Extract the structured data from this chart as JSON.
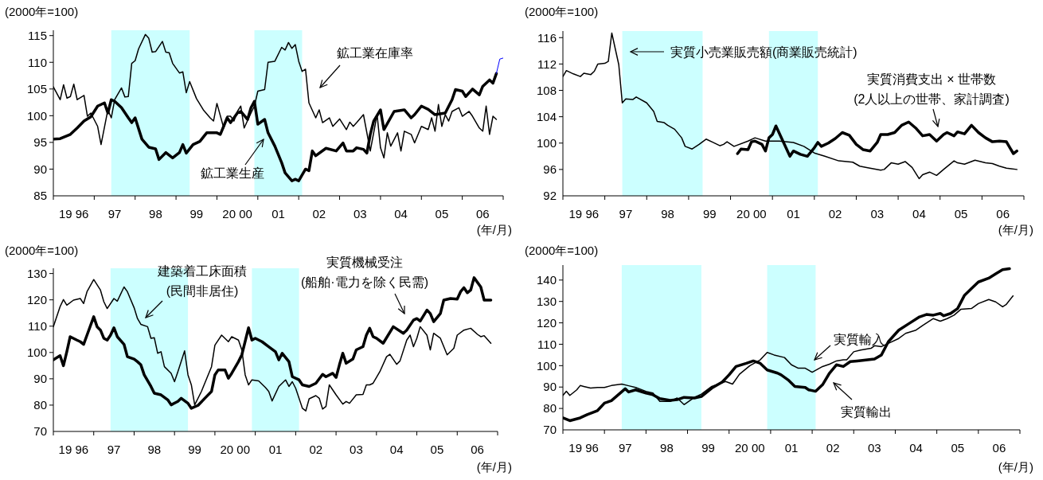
{
  "chart_data": [
    {
      "type": "line",
      "ylabel": "(2000年=100)",
      "xlabel": "(年/月)",
      "xlim": [
        "1996",
        "2007"
      ],
      "ylim": [
        85,
        116
      ],
      "yticks": [
        85,
        90,
        95,
        100,
        105,
        110,
        115
      ],
      "xticks": [
        {
          "value": "1996",
          "label": null
        },
        {
          "value": "1996-07",
          "label": "19 96"
        },
        {
          "value": "1997",
          "label": null
        },
        {
          "value": "1997-07",
          "label": "97"
        },
        {
          "value": "1998",
          "label": null
        },
        {
          "value": "1998-07",
          "label": "98"
        },
        {
          "value": "1999",
          "label": null
        },
        {
          "value": "1999-07",
          "label": "99"
        },
        {
          "value": "2000",
          "label": null
        },
        {
          "value": "2000-07",
          "label": "20 00"
        },
        {
          "value": "2001",
          "label": null
        },
        {
          "value": "2001-07",
          "label": "01"
        },
        {
          "value": "2002",
          "label": null
        },
        {
          "value": "2002-07",
          "label": "02"
        },
        {
          "value": "2003",
          "label": null
        },
        {
          "value": "2003-07",
          "label": "03"
        },
        {
          "value": "2004",
          "label": null
        },
        {
          "value": "2004-07",
          "label": "04"
        },
        {
          "value": "2005",
          "label": null
        },
        {
          "value": "2005-07",
          "label": "05"
        },
        {
          "value": "2006",
          "label": null
        },
        {
          "value": "2006-07",
          "label": "06"
        },
        {
          "value": "2007",
          "label": null
        }
      ],
      "bands": [
        {
          "axis": "x",
          "from": "1997-06",
          "to": "1999-05",
          "color": "#ccffff"
        },
        {
          "axis": "x",
          "from": "2000-12",
          "to": "2002-02",
          "color": "#ccffff"
        }
      ],
      "series": [
        {
          "name": "鉱工業在庫率",
          "color": "#000000",
          "x": [
            "1996-01",
            "1996-03",
            "1996-04",
            "1996-05",
            "1996-06",
            "1996-07",
            "1996-08",
            "1996-10",
            "1996-11",
            "1996-12",
            "1997-02",
            "1997-03",
            "1997-05",
            "1997-06",
            "1997-07",
            "1997-09",
            "1997-10",
            "1997-11",
            "1997-12",
            "1998-01",
            "1998-02",
            "1998-04",
            "1998-05",
            "1998-06",
            "1998-07",
            "1998-09",
            "1998-10",
            "1998-11",
            "1998-12",
            "1999-02",
            "1999-03",
            "1999-04",
            "1999-05",
            "1999-07",
            "1999-09",
            "1999-11",
            "1999-12",
            "2000-01",
            "2000-03",
            "2000-04",
            "2000-05",
            "2000-06",
            "2000-07",
            "2000-08",
            "2000-09",
            "2000-11",
            "2000-12",
            "2001-01",
            "2001-03",
            "2001-04",
            "2001-06",
            "2001-08",
            "2001-09",
            "2001-10",
            "2001-11",
            "2001-12",
            "2002-01",
            "2002-02",
            "2002-03",
            "2002-04",
            "2002-06",
            "2002-07",
            "2002-08",
            "2002-10",
            "2002-11",
            "2003-01",
            "2003-03",
            "2003-04",
            "2003-05",
            "2003-06",
            "2003-08",
            "2003-10",
            "2003-12",
            "2004-01",
            "2004-02",
            "2004-03",
            "2004-04",
            "2004-06",
            "2004-07",
            "2004-08",
            "2004-10",
            "2004-11",
            "2005-01",
            "2005-03",
            "2005-04",
            "2005-05",
            "2005-06",
            "2005-07",
            "2005-08",
            "2005-09",
            "2005-10",
            "2005-12",
            "2006-01",
            "2006-03",
            "2006-04",
            "2006-06",
            "2006-07",
            "2006-08",
            "2006-09",
            "2006-10",
            "2006-11"
          ],
          "values": [
            105.4,
            103.0,
            105.8,
            103.3,
            103.6,
            105.9,
            103.0,
            103.8,
            99.9,
            100.5,
            98.0,
            94.6,
            101.1,
            99.6,
            103.0,
            105.2,
            103.5,
            103.6,
            109.8,
            110.3,
            112.5,
            115.2,
            114.5,
            111.9,
            112.0,
            113.9,
            111.9,
            111.8,
            109.8,
            108.0,
            108.2,
            104.3,
            106.4,
            103.2,
            101.1,
            99.6,
            99.0,
            102.3,
            97.7,
            99.9,
            99.9,
            99.0,
            100.8,
            101.8,
            97.7,
            100.5,
            101.8,
            104.6,
            104.9,
            110.0,
            110.2,
            112.8,
            112.3,
            113.7,
            112.6,
            113.3,
            110.2,
            108.3,
            108.7,
            102.4,
            99.6,
            101.1,
            98.7,
            99.6,
            98.0,
            99.4,
            97.4,
            98.8,
            98.0,
            98.7,
            100.2,
            93.4,
            100.2,
            94.0,
            92.1,
            96.8,
            94.3,
            96.8,
            93.4,
            97.1,
            96.5,
            94.9,
            98.0,
            97.4,
            99.6,
            97.1,
            102.1,
            98.0,
            100.2,
            99.0,
            100.8,
            101.5,
            99.9,
            100.8,
            99.9,
            97.7,
            97.1,
            101.8,
            96.5,
            99.9,
            99.3
          ]
        },
        {
          "name": "鉱工業生産",
          "color": "#000000",
          "x": [
            "1996-01",
            "1996-03",
            "1996-06",
            "1996-08",
            "1996-10",
            "1996-12",
            "1997-02",
            "1997-04",
            "1997-05",
            "1997-06",
            "1997-07",
            "1997-09",
            "1997-11",
            "1997-12",
            "1998-01",
            "1998-03",
            "1998-05",
            "1998-07",
            "1998-08",
            "1998-10",
            "1998-12",
            "1999-02",
            "1999-03",
            "1999-04",
            "1999-06",
            "1999-08",
            "1999-10",
            "2000-01",
            "2000-02",
            "2000-04",
            "2000-05",
            "2000-07",
            "2000-08",
            "2000-10",
            "2000-11",
            "2000-12",
            "2001-01",
            "2001-03",
            "2001-04",
            "2001-06",
            "2001-08",
            "2001-09",
            "2001-11",
            "2001-12",
            "2002-01",
            "2002-03",
            "2002-04",
            "2002-05",
            "2002-06",
            "2002-09",
            "2002-12",
            "2003-02",
            "2003-03",
            "2003-05",
            "2003-06",
            "2003-08",
            "2003-09",
            "2003-10",
            "2003-11",
            "2004-01",
            "2004-02",
            "2004-05",
            "2004-08",
            "2004-10",
            "2004-11",
            "2005-01",
            "2005-03",
            "2005-05",
            "2005-08",
            "2005-10",
            "2005-11",
            "2006-01",
            "2006-02",
            "2006-04",
            "2006-06",
            "2006-07",
            "2006-09",
            "2006-10",
            "2006-11"
          ],
          "values": [
            95.6,
            95.7,
            96.5,
            97.7,
            99.0,
            99.8,
            101.8,
            102.4,
            100.5,
            103.0,
            102.7,
            101.5,
            99.6,
            98.7,
            99.6,
            95.6,
            94.1,
            93.8,
            91.8,
            93.1,
            92.1,
            93.1,
            94.6,
            93.0,
            94.6,
            95.2,
            96.8,
            96.8,
            96.5,
            99.6,
            98.7,
            100.5,
            100.8,
            99.3,
            101.5,
            102.7,
            98.4,
            99.3,
            96.8,
            94.3,
            91.2,
            89.3,
            87.8,
            88.1,
            87.8,
            90.0,
            89.7,
            93.4,
            92.5,
            93.9,
            93.4,
            94.9,
            93.4,
            93.4,
            94.0,
            93.7,
            93.0,
            96.5,
            99.0,
            101.1,
            97.4,
            100.8,
            101.1,
            99.6,
            100.2,
            101.8,
            101.2,
            100.2,
            100.5,
            103.0,
            104.9,
            104.6,
            103.6,
            105.0,
            103.9,
            105.5,
            106.7,
            106.1,
            107.9
          ]
        },
        {
          "color": "#0000ff",
          "x": [
            "2006-11",
            "2006-12",
            "2007-01"
          ],
          "values": [
            107.9,
            110.6,
            110.8
          ]
        }
      ]
    },
    {
      "type": "line",
      "ylabel": "(2000年=100)",
      "xlabel": "(年/月)",
      "xlim": [
        "1996",
        "2007"
      ],
      "ylim": [
        92,
        117
      ],
      "yticks": [
        92,
        96,
        100,
        104,
        108,
        112,
        116
      ],
      "xticks": [
        {
          "value": "1996",
          "label": null
        },
        {
          "value": "1996-07",
          "label": "19 96"
        },
        {
          "value": "1997",
          "label": null
        },
        {
          "value": "1997-07",
          "label": "97"
        },
        {
          "value": "1998",
          "label": null
        },
        {
          "value": "1998-07",
          "label": "98"
        },
        {
          "value": "1999",
          "label": null
        },
        {
          "value": "1999-07",
          "label": "99"
        },
        {
          "value": "2000",
          "label": null
        },
        {
          "value": "2000-07",
          "label": "20 00"
        },
        {
          "value": "2001",
          "label": null
        },
        {
          "value": "2001-07",
          "label": "01"
        },
        {
          "value": "2002",
          "label": null
        },
        {
          "value": "2002-07",
          "label": "02"
        },
        {
          "value": "2003",
          "label": null
        },
        {
          "value": "2003-07",
          "label": "03"
        },
        {
          "value": "2004",
          "label": null
        },
        {
          "value": "2004-07",
          "label": "04"
        },
        {
          "value": "2005",
          "label": null
        },
        {
          "value": "2005-07",
          "label": "05"
        },
        {
          "value": "2006",
          "label": null
        },
        {
          "value": "2006-07",
          "label": "06"
        },
        {
          "value": "2007",
          "label": null
        }
      ],
      "bands": [
        {
          "axis": "x",
          "from": "1997-06",
          "to": "1999-05",
          "color": "#ccffff"
        },
        {
          "axis": "x",
          "from": "2000-12",
          "to": "2002-02",
          "color": "#ccffff"
        }
      ],
      "series": [
        {
          "name": "実質小売業販売額(商業販売統計)",
          "color": "#000000",
          "x": [
            "1996-01",
            "1996-02",
            "1996-04",
            "1996-06",
            "1996-07",
            "1996-09",
            "1996-10",
            "1996-11",
            "1997-01",
            "1997-02",
            "1997-03",
            "1997-05",
            "1997-06",
            "1997-07",
            "1997-09",
            "1997-10",
            "1998-01",
            "1998-03",
            "1998-04",
            "1998-06",
            "1998-07",
            "1998-09",
            "1998-11",
            "1998-12",
            "1999-02",
            "1999-04",
            "1999-06",
            "1999-08",
            "1999-10",
            "1999-11",
            "1999-12",
            "2000-02",
            "2000-06",
            "2000-08",
            "2000-11",
            "2001-03",
            "2001-07",
            "2001-10",
            "2002-01",
            "2002-04",
            "2002-08",
            "2002-12",
            "2003-02",
            "2003-04",
            "2003-08",
            "2003-09",
            "2003-11",
            "2004-01",
            "2004-03",
            "2004-05",
            "2004-07",
            "2004-08",
            "2004-10",
            "2004-12",
            "2005-02",
            "2005-05",
            "2005-06",
            "2005-08",
            "2005-11",
            "2006-02",
            "2006-04",
            "2006-06",
            "2006-08",
            "2006-11"
          ],
          "values": [
            110.1,
            111.0,
            110.5,
            110.1,
            110.6,
            110.4,
            110.9,
            112.0,
            112.1,
            112.4,
            116.7,
            111.9,
            106.1,
            106.7,
            106.6,
            107.0,
            106.1,
            104.8,
            103.3,
            103.1,
            102.7,
            102.1,
            100.8,
            99.5,
            99.1,
            99.8,
            100.6,
            100.1,
            99.6,
            99.8,
            100.2,
            99.5,
            100.3,
            100.8,
            100.3,
            100.3,
            100.1,
            99.5,
            98.5,
            98.0,
            97.3,
            97.1,
            96.5,
            96.3,
            95.9,
            96.0,
            97.0,
            96.8,
            97.2,
            96.3,
            94.6,
            95.2,
            95.6,
            95.1,
            96.0,
            97.3,
            97.0,
            96.8,
            97.4,
            97.0,
            96.9,
            96.5,
            96.2,
            96.0
          ]
        },
        {
          "name": "実質消費支出 × 世帯数\n(2人以上の世帯、家計調査)",
          "color": "#000000",
          "x": [
            "2000-03",
            "2000-04",
            "2000-06",
            "2000-07",
            "2000-08",
            "2000-10",
            "2000-11",
            "2000-12",
            "2001-01",
            "2001-02",
            "2001-04",
            "2001-06",
            "2001-07",
            "2001-09",
            "2001-11",
            "2002-01",
            "2002-02",
            "2002-03",
            "2002-05",
            "2002-07",
            "2002-09",
            "2002-11",
            "2003-01",
            "2003-03",
            "2003-05",
            "2003-07",
            "2003-08",
            "2003-10",
            "2003-12",
            "2004-02",
            "2004-04",
            "2004-06",
            "2004-08",
            "2004-10",
            "2004-12",
            "2005-02",
            "2005-03",
            "2005-05",
            "2005-06",
            "2005-08",
            "2005-10",
            "2005-12",
            "2006-02",
            "2006-04",
            "2006-06",
            "2006-08",
            "2006-10",
            "2006-11"
          ],
          "values": [
            98.4,
            99.1,
            99.0,
            100.2,
            100.3,
            99.8,
            98.8,
            100.8,
            101.3,
            102.6,
            100.3,
            98.0,
            98.8,
            98.3,
            98.0,
            99.3,
            100.1,
            99.5,
            100.0,
            100.7,
            101.6,
            101.2,
            99.8,
            99.0,
            98.8,
            100.1,
            101.3,
            101.3,
            101.6,
            102.7,
            103.2,
            102.3,
            101.1,
            101.3,
            100.3,
            101.3,
            101.6,
            101.1,
            101.7,
            101.4,
            102.7,
            101.6,
            100.8,
            100.2,
            100.3,
            100.2,
            98.4,
            98.8
          ]
        }
      ]
    },
    {
      "type": "line",
      "ylabel": "(2000年=100)",
      "xlabel": "(年/月)",
      "xlim": [
        "1996",
        "2007"
      ],
      "ylim": [
        70,
        132
      ],
      "yticks": [
        70,
        80,
        90,
        100,
        110,
        120,
        130
      ],
      "xticks": [
        {
          "value": "1996",
          "label": null
        },
        {
          "value": "1996-07",
          "label": "19 96"
        },
        {
          "value": "1997",
          "label": null
        },
        {
          "value": "1997-07",
          "label": "97"
        },
        {
          "value": "1998",
          "label": null
        },
        {
          "value": "1998-07",
          "label": "98"
        },
        {
          "value": "1999",
          "label": null
        },
        {
          "value": "1999-07",
          "label": "99"
        },
        {
          "value": "2000",
          "label": null
        },
        {
          "value": "2000-07",
          "label": "20 00"
        },
        {
          "value": "2001",
          "label": null
        },
        {
          "value": "2001-07",
          "label": "01"
        },
        {
          "value": "2002",
          "label": null
        },
        {
          "value": "2002-07",
          "label": "02"
        },
        {
          "value": "2003",
          "label": null
        },
        {
          "value": "2003-07",
          "label": "03"
        },
        {
          "value": "2004",
          "label": null
        },
        {
          "value": "2004-07",
          "label": "04"
        },
        {
          "value": "2005",
          "label": null
        },
        {
          "value": "2005-07",
          "label": "05"
        },
        {
          "value": "2006",
          "label": null
        },
        {
          "value": "2006-07",
          "label": "06"
        },
        {
          "value": "2007",
          "label": null
        }
      ],
      "bands": [
        {
          "axis": "x",
          "from": "1997-06",
          "to": "1999-05",
          "color": "#ccffff"
        },
        {
          "axis": "x",
          "from": "2000-12",
          "to": "2002-02",
          "color": "#ccffff"
        }
      ],
      "series": [
        {
          "name": "建築着工床面積\n(民間非居住)",
          "color": "#000000",
          "x": [
            "1996-01",
            "1996-03",
            "1996-04",
            "1996-05",
            "1996-07",
            "1996-09",
            "1996-10",
            "1996-11",
            "1997-01",
            "1997-03",
            "1997-04",
            "1997-05",
            "1997-07",
            "1997-08",
            "1997-10",
            "1997-11",
            "1998-01",
            "1998-02",
            "1998-03",
            "1998-05",
            "1998-06",
            "1998-07",
            "1998-08",
            "1998-09",
            "1998-10",
            "1998-12",
            "1999-01",
            "1999-02",
            "1999-04",
            "1999-05",
            "1999-06",
            "1999-07",
            "1999-09",
            "1999-11",
            "1999-12",
            "2000-01",
            "2000-03",
            "2000-05",
            "2000-06",
            "2000-08",
            "2000-09",
            "2000-10",
            "2000-11",
            "2000-12",
            "2001-02",
            "2001-04",
            "2001-05",
            "2001-06",
            "2001-08",
            "2001-10",
            "2001-11",
            "2001-12",
            "2002-01",
            "2002-03",
            "2002-04",
            "2002-05",
            "2002-07",
            "2002-08",
            "2002-09",
            "2002-10",
            "2002-11",
            "2003-01",
            "2003-03",
            "2003-04",
            "2003-05",
            "2003-07",
            "2003-09",
            "2003-10",
            "2003-11",
            "2003-12",
            "2004-02",
            "2004-04",
            "2004-05",
            "2004-07",
            "2004-08",
            "2004-10",
            "2004-11",
            "2004-12",
            "2005-01",
            "2005-02",
            "2005-04",
            "2005-05",
            "2005-06",
            "2005-08",
            "2005-10",
            "2005-12",
            "2006-01",
            "2006-03",
            "2006-05",
            "2006-07",
            "2006-08",
            "2006-09",
            "2006-11"
          ],
          "values": [
            109.8,
            117.4,
            120.1,
            118.0,
            119.9,
            120.5,
            118.6,
            123.1,
            127.7,
            123.7,
            119.3,
            116.7,
            120.5,
            119.5,
            124.9,
            123.1,
            117.0,
            112.9,
            110.7,
            109.8,
            105.4,
            105.6,
            99.7,
            100.3,
            94.6,
            92.1,
            88.9,
            92.7,
            100.6,
            91.5,
            87.7,
            80.1,
            85.2,
            91.5,
            94.6,
            102.8,
            106.6,
            104.1,
            106.0,
            104.7,
            101.0,
            91.5,
            87.7,
            89.6,
            89.2,
            86.7,
            85.2,
            81.6,
            87.1,
            89.6,
            87.1,
            88.9,
            86.4,
            78.8,
            77.8,
            82.4,
            83.6,
            82.6,
            78.5,
            79.5,
            87.7,
            83.9,
            80.4,
            81.4,
            80.7,
            83.9,
            84.1,
            87.7,
            87.7,
            88.3,
            92.7,
            98.4,
            99.3,
            95.5,
            96.8,
            104.7,
            106.6,
            102.2,
            105.4,
            109.8,
            106.6,
            101.0,
            107.3,
            105.4,
            99.1,
            101.6,
            106.6,
            108.5,
            109.2,
            106.9,
            106.0,
            106.4,
            103.5
          ]
        },
        {
          "name": "実質機械受注\n(船舶·電力を除く民需)",
          "color": "#000000",
          "x": [
            "1996-01",
            "1996-03",
            "1996-04",
            "1996-05",
            "1996-06",
            "1996-08",
            "1996-09",
            "1996-10",
            "1996-11",
            "1997-01",
            "1997-02",
            "1997-03",
            "1997-04",
            "1997-05",
            "1997-06",
            "1997-07",
            "1997-08",
            "1997-10",
            "1997-11",
            "1998-01",
            "1998-02",
            "1998-03",
            "1998-04",
            "1998-06",
            "1998-07",
            "1998-09",
            "1998-11",
            "1998-12",
            "1999-02",
            "1999-03",
            "1999-05",
            "1999-06",
            "1999-08",
            "1999-10",
            "1999-12",
            "2000-01",
            "2000-02",
            "2000-04",
            "2000-05",
            "2000-06",
            "2000-08",
            "2000-09",
            "2000-11",
            "2000-12",
            "2001-01",
            "2001-03",
            "2001-05",
            "2001-07",
            "2001-08",
            "2001-09",
            "2001-11",
            "2001-12",
            "2002-02",
            "2002-03",
            "2002-05",
            "2002-07",
            "2002-09",
            "2002-10",
            "2002-12",
            "2003-01",
            "2003-02",
            "2003-03",
            "2003-04",
            "2003-06",
            "2003-07",
            "2003-09",
            "2003-10",
            "2003-11",
            "2003-12",
            "2004-01",
            "2004-03",
            "2004-06",
            "2004-09",
            "2004-10",
            "2004-12",
            "2005-01",
            "2005-02",
            "2005-04",
            "2005-05",
            "2005-06",
            "2005-08",
            "2005-09",
            "2005-11",
            "2006-01",
            "2006-02",
            "2006-03",
            "2006-04",
            "2006-05",
            "2006-06",
            "2006-08",
            "2006-09",
            "2006-11"
          ],
          "values": [
            97.2,
            98.8,
            95.0,
            100.3,
            106.0,
            104.7,
            104.1,
            103.1,
            106.6,
            113.6,
            109.8,
            108.5,
            105.4,
            104.7,
            106.6,
            109.4,
            106.0,
            103.1,
            98.4,
            97.5,
            96.5,
            95.3,
            91.5,
            87.1,
            84.5,
            83.9,
            82.0,
            80.1,
            81.4,
            82.6,
            80.7,
            78.8,
            79.9,
            82.6,
            85.2,
            91.5,
            93.4,
            93.4,
            90.2,
            92.1,
            96.5,
            99.1,
            109.4,
            104.7,
            105.4,
            104.1,
            102.2,
            100.3,
            97.2,
            99.7,
            96.5,
            90.8,
            89.6,
            87.7,
            87.1,
            88.3,
            91.7,
            90.8,
            92.1,
            90.5,
            95.3,
            99.7,
            95.9,
            97.5,
            101.0,
            102.2,
            106.6,
            109.2,
            106.0,
            105.4,
            103.5,
            109.8,
            107.3,
            108.5,
            112.3,
            112.9,
            111.9,
            116.1,
            114.8,
            111.7,
            114.8,
            119.9,
            120.5,
            120.3,
            123.1,
            124.6,
            122.7,
            123.7,
            128.4,
            124.9,
            119.9,
            119.9
          ]
        }
      ]
    },
    {
      "type": "line",
      "ylabel": "(2000年=100)",
      "xlabel": "(年/月)",
      "xlim": [
        "1996",
        "2007"
      ],
      "ylim": [
        70,
        147
      ],
      "yticks": [
        70,
        80,
        90,
        100,
        110,
        120,
        130,
        140
      ],
      "xticks": [
        {
          "value": "1996",
          "label": null
        },
        {
          "value": "1996-07",
          "label": "19 96"
        },
        {
          "value": "1997",
          "label": null
        },
        {
          "value": "1997-07",
          "label": "97"
        },
        {
          "value": "1998",
          "label": null
        },
        {
          "value": "1998-07",
          "label": "98"
        },
        {
          "value": "1999",
          "label": null
        },
        {
          "value": "1999-07",
          "label": "99"
        },
        {
          "value": "2000",
          "label": null
        },
        {
          "value": "2000-07",
          "label": "20 00"
        },
        {
          "value": "2001",
          "label": null
        },
        {
          "value": "2001-07",
          "label": "01"
        },
        {
          "value": "2002",
          "label": null
        },
        {
          "value": "2002-07",
          "label": "02"
        },
        {
          "value": "2003",
          "label": null
        },
        {
          "value": "2003-07",
          "label": "03"
        },
        {
          "value": "2004",
          "label": null
        },
        {
          "value": "2004-07",
          "label": "04"
        },
        {
          "value": "2005",
          "label": null
        },
        {
          "value": "2005-07",
          "label": "05"
        },
        {
          "value": "2006",
          "label": null
        },
        {
          "value": "2006-07",
          "label": "06"
        },
        {
          "value": "2007",
          "label": null
        }
      ],
      "bands": [
        {
          "axis": "x",
          "from": "1997-06",
          "to": "1999-05",
          "color": "#ccffff"
        },
        {
          "axis": "x",
          "from": "2000-12",
          "to": "2002-02",
          "color": "#ccffff"
        }
      ],
      "series": [
        {
          "name": "実質輸入",
          "color": "#000000",
          "x": [
            "1996-01",
            "1996-02",
            "1996-03",
            "1996-05",
            "1996-06",
            "1996-07",
            "1996-09",
            "1996-11",
            "1997-01",
            "1997-03",
            "1997-06",
            "1997-08",
            "1997-10",
            "1998-01",
            "1998-03",
            "1998-05",
            "1998-08",
            "1998-10",
            "1998-12",
            "1999-03",
            "1999-05",
            "1999-08",
            "1999-12",
            "2000-02",
            "2000-04",
            "2000-07",
            "2000-10",
            "2000-12",
            "2001-02",
            "2001-05",
            "2001-07",
            "2001-09",
            "2001-11",
            "2002-01",
            "2002-04",
            "2002-06",
            "2002-08",
            "2002-10",
            "2002-11",
            "2003-01",
            "2003-03",
            "2003-06",
            "2003-07",
            "2003-09",
            "2003-11",
            "2004-02",
            "2004-04",
            "2004-07",
            "2004-09",
            "2004-12",
            "2005-02",
            "2005-04",
            "2005-06",
            "2005-08",
            "2005-11",
            "2006-01",
            "2006-04",
            "2006-06",
            "2006-08",
            "2006-09",
            "2006-11"
          ],
          "values": [
            86.1,
            88.0,
            86.1,
            88.7,
            90.7,
            90.3,
            89.5,
            89.8,
            89.8,
            90.7,
            91.4,
            90.6,
            89.8,
            88.0,
            87.2,
            83.3,
            83.3,
            84.9,
            81.8,
            85.2,
            86.7,
            90.3,
            92.6,
            91.4,
            96.0,
            100.0,
            102.7,
            106.2,
            105.0,
            103.8,
            100.4,
            98.8,
            98.8,
            96.9,
            99.6,
            100.7,
            102.2,
            102.7,
            102.7,
            106.5,
            107.3,
            108.1,
            109.3,
            108.9,
            110.4,
            112.7,
            115.1,
            116.6,
            118.9,
            122.0,
            120.8,
            122.0,
            123.6,
            126.4,
            126.7,
            129.0,
            130.9,
            129.8,
            127.5,
            128.5,
            132.6
          ]
        },
        {
          "name": "実質輸出",
          "color": "#000000",
          "x": [
            "1996-01",
            "1996-03",
            "1996-06",
            "1996-08",
            "1996-11",
            "1997-01",
            "1997-03",
            "1997-05",
            "1997-07",
            "1997-08",
            "1997-10",
            "1998-01",
            "1998-03",
            "1998-05",
            "1998-08",
            "1998-10",
            "1998-12",
            "1999-03",
            "1999-05",
            "1999-08",
            "1999-11",
            "2000-01",
            "2000-03",
            "2000-06",
            "2000-08",
            "2000-10",
            "2000-12",
            "2001-03",
            "2001-04",
            "2001-06",
            "2001-08",
            "2001-11",
            "2001-12",
            "2002-02",
            "2002-04",
            "2002-06",
            "2002-08",
            "2002-10",
            "2002-12",
            "2003-02",
            "2003-05",
            "2003-07",
            "2003-09",
            "2003-11",
            "2004-02",
            "2004-05",
            "2004-08",
            "2004-10",
            "2004-12",
            "2005-02",
            "2005-03",
            "2005-05",
            "2005-07",
            "2005-09",
            "2005-11",
            "2006-01",
            "2006-04",
            "2006-06",
            "2006-08",
            "2006-10"
          ],
          "values": [
            75.6,
            74.3,
            75.6,
            77.1,
            79.0,
            82.5,
            83.6,
            86.4,
            89.2,
            87.7,
            88.7,
            87.2,
            86.4,
            84.6,
            83.8,
            84.1,
            85.2,
            84.9,
            85.6,
            89.5,
            92.3,
            95.7,
            99.6,
            101.1,
            102.2,
            101.1,
            98.0,
            96.5,
            95.7,
            93.4,
            90.3,
            89.8,
            88.7,
            88.0,
            91.1,
            96.5,
            100.4,
            99.6,
            101.9,
            102.2,
            102.7,
            103.1,
            105.0,
            111.2,
            116.6,
            119.7,
            122.8,
            123.9,
            123.6,
            124.4,
            123.3,
            124.4,
            126.7,
            132.9,
            136.0,
            139.1,
            140.9,
            142.9,
            144.9,
            145.3
          ]
        }
      ]
    }
  ]
}
